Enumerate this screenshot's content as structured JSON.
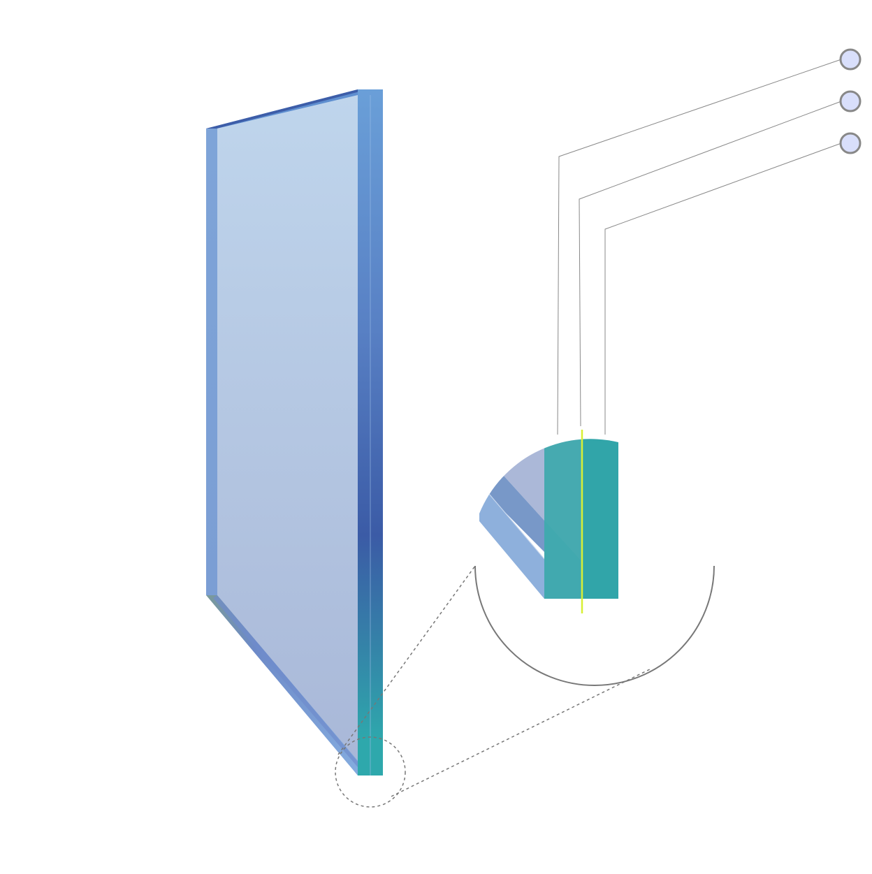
{
  "diagram": {
    "subject": "laminated-glass-pane",
    "layers": [
      {
        "id": "outer-glass",
        "color": "#46aab0"
      },
      {
        "id": "interlayer",
        "color": "#d8f034"
      },
      {
        "id": "inner-glass",
        "color": "#31a5a9"
      }
    ],
    "callouts": [
      {
        "id": "callout-1",
        "label": "",
        "target": "outer-glass"
      },
      {
        "id": "callout-2",
        "label": "",
        "target": "interlayer"
      },
      {
        "id": "callout-3",
        "label": "",
        "target": "inner-glass"
      }
    ],
    "colors": {
      "pane_face_top": "#bed5ec",
      "pane_face_bottom": "#aab8d8",
      "pane_edge": "#5d8ccc",
      "edge_dark": "#3d5fa8",
      "edge_teal": "#2ea8ac",
      "marker_fill": "#d9dffb",
      "marker_stroke": "#888888",
      "leader_line": "#888888",
      "magnifier_ring": "#777777"
    }
  }
}
